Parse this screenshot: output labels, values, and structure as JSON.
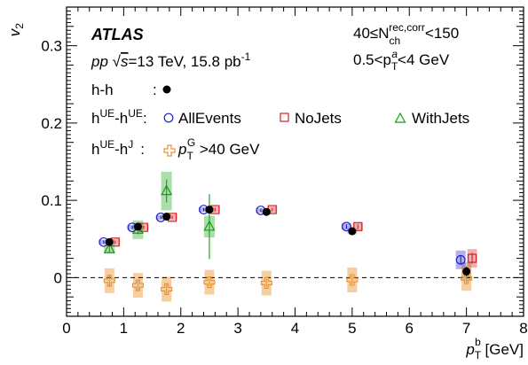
{
  "chart_data": {
    "type": "scatter",
    "title": "",
    "x_range": [
      0,
      8
    ],
    "y_range": [
      -0.05,
      0.35
    ],
    "x_ticks": [
      0,
      1,
      2,
      3,
      4,
      5,
      6,
      7,
      8
    ],
    "y_ticks": [
      0,
      0.1,
      0.2,
      0.3
    ],
    "x_tick_labels": [
      "0",
      "1",
      "2",
      "3",
      "4",
      "5",
      "6",
      "7",
      "8"
    ],
    "y_tick_labels": [
      "0",
      "0.1",
      "0.2",
      "0.3"
    ],
    "xlabel": {
      "main": "p",
      "sub": "T",
      "sup": "b",
      "unit": " [GeV]"
    },
    "ylabel": {
      "main": "v",
      "sub": "2"
    },
    "annotations": {
      "experiment": "ATLAS",
      "energy_pre": "pp  ",
      "sqrt": "√",
      "s": "s",
      "energy_post": "=13 TeV, 15.8 pb",
      "lumi_sup": "-1",
      "mult_pre": "40≤N",
      "mult_sub": "ch",
      "mult_sup": "rec,corr",
      "mult_post": "<150",
      "pta_pre": "0.5<p",
      "pta_sub": "T",
      "pta_sup": "a",
      "pta_post": "<4 GeV"
    },
    "legend": {
      "hh_label": "h-h",
      "ue_pre": "h",
      "ue_sup1": "UE",
      "ue_mid": "-h",
      "ue_sup2": "UE",
      "uej_pre": "h",
      "uej_sup1": "UE",
      "uej_mid": "-h",
      "uej_sup2": "J",
      "colon": ":",
      "entry_allevents": "AllEvents",
      "entry_nojets": "NoJets",
      "entry_withjets": "WithJets",
      "entry_ptg_main": "p",
      "entry_ptg_sub": "T",
      "entry_ptg_sup": "G",
      "entry_ptg_post": " >40 GeV"
    },
    "colors": {
      "hh": "#000000",
      "allevents": "#1f1fcc",
      "nojets": "#d62020",
      "withjets": "#12a012",
      "ptg": "#e8922f"
    },
    "series": [
      {
        "key": "hh",
        "name": "h-h",
        "marker": "filled-circle",
        "points": [
          {
            "x": 0.75,
            "y": 0.046,
            "err": 0.002,
            "sys": 0.003
          },
          {
            "x": 1.25,
            "y": 0.066,
            "err": 0.002,
            "sys": 0.003
          },
          {
            "x": 1.75,
            "y": 0.079,
            "err": 0.002,
            "sys": 0.003
          },
          {
            "x": 2.5,
            "y": 0.088,
            "err": 0.002,
            "sys": 0.003
          },
          {
            "x": 3.5,
            "y": 0.085,
            "err": 0.002,
            "sys": 0.003
          },
          {
            "x": 5.0,
            "y": 0.06,
            "err": 0.003,
            "sys": 0.004
          },
          {
            "x": 7.0,
            "y": 0.008,
            "err": 0.006,
            "sys": 0.012
          }
        ]
      },
      {
        "key": "allevents",
        "name": "AllEvents",
        "marker": "open-circle",
        "points": [
          {
            "x": 0.65,
            "y": 0.046,
            "err": 0.002,
            "sys": 0.003
          },
          {
            "x": 1.15,
            "y": 0.065,
            "err": 0.002,
            "sys": 0.003
          },
          {
            "x": 1.65,
            "y": 0.078,
            "err": 0.002,
            "sys": 0.003
          },
          {
            "x": 2.4,
            "y": 0.088,
            "err": 0.002,
            "sys": 0.003
          },
          {
            "x": 3.4,
            "y": 0.087,
            "err": 0.002,
            "sys": 0.003
          },
          {
            "x": 4.9,
            "y": 0.066,
            "err": 0.003,
            "sys": 0.004
          },
          {
            "x": 6.9,
            "y": 0.023,
            "err": 0.006,
            "sys": 0.012
          }
        ]
      },
      {
        "key": "nojets",
        "name": "NoJets",
        "marker": "open-square",
        "points": [
          {
            "x": 0.85,
            "y": 0.046,
            "err": 0.002,
            "sys": 0.004
          },
          {
            "x": 1.35,
            "y": 0.065,
            "err": 0.002,
            "sys": 0.004
          },
          {
            "x": 1.85,
            "y": 0.078,
            "err": 0.002,
            "sys": 0.004
          },
          {
            "x": 2.6,
            "y": 0.088,
            "err": 0.002,
            "sys": 0.004
          },
          {
            "x": 3.6,
            "y": 0.088,
            "err": 0.002,
            "sys": 0.004
          },
          {
            "x": 5.1,
            "y": 0.066,
            "err": 0.003,
            "sys": 0.005
          },
          {
            "x": 7.1,
            "y": 0.025,
            "err": 0.007,
            "sys": 0.012
          }
        ]
      },
      {
        "key": "withjets",
        "name": "WithJets",
        "marker": "open-triangle",
        "points": [
          {
            "x": 0.75,
            "y": 0.037,
            "err": 0.004,
            "sys": 0.006
          },
          {
            "x": 1.25,
            "y": 0.062,
            "err": 0.006,
            "sys": 0.012
          },
          {
            "x": 1.75,
            "y": 0.112,
            "err": 0.015,
            "sys": 0.025
          },
          {
            "x": 2.5,
            "y": 0.066,
            "err": 0.042,
            "sys": 0.014
          }
        ]
      },
      {
        "key": "ptg",
        "name": "pTG >40 GeV",
        "marker": "open-cross",
        "points": [
          {
            "x": 0.75,
            "y": -0.004,
            "err": 0.008,
            "sys": 0.016
          },
          {
            "x": 1.25,
            "y": -0.01,
            "err": 0.006,
            "sys": 0.016
          },
          {
            "x": 1.75,
            "y": -0.015,
            "err": 0.006,
            "sys": 0.016
          },
          {
            "x": 2.5,
            "y": -0.006,
            "err": 0.005,
            "sys": 0.016
          },
          {
            "x": 3.5,
            "y": -0.007,
            "err": 0.005,
            "sys": 0.016
          },
          {
            "x": 5.0,
            "y": -0.003,
            "err": 0.005,
            "sys": 0.016
          },
          {
            "x": 7.0,
            "y": -0.001,
            "err": 0.006,
            "sys": 0.016
          }
        ]
      }
    ]
  }
}
